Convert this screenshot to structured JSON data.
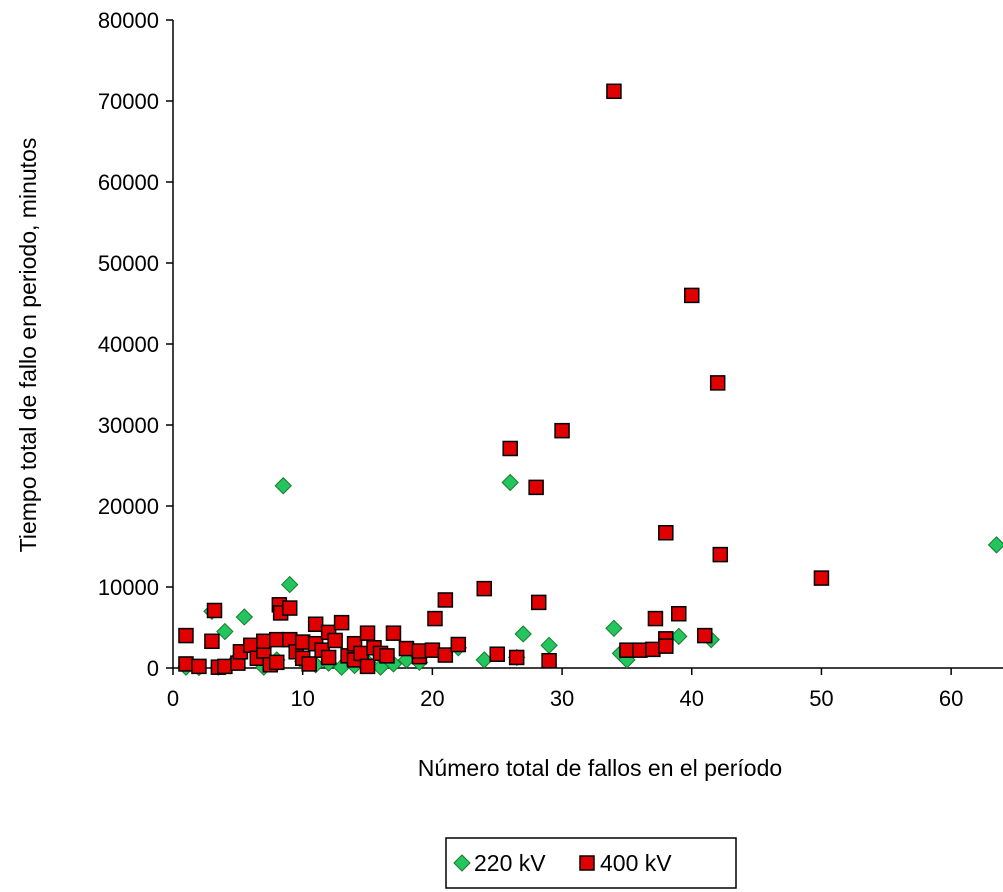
{
  "chart_data": {
    "type": "scatter",
    "title": "",
    "xlabel": "Número total de fallos en el período",
    "ylabel": "Tiempo total de fallo en periodo, minutos",
    "xlim": [
      0,
      64
    ],
    "ylim": [
      0,
      80000
    ],
    "x_ticks": [
      "0",
      "10",
      "20",
      "30",
      "40",
      "50",
      "60"
    ],
    "y_ticks": [
      "0",
      "10000",
      "20000",
      "30000",
      "40000",
      "50000",
      "60000",
      "70000",
      "80000"
    ],
    "grid": false,
    "legend_position": "bottom",
    "series": [
      {
        "name": "220 kV",
        "marker": "diamond",
        "color": "#22c55e",
        "points": [
          [
            1,
            100
          ],
          [
            2,
            50
          ],
          [
            3,
            7000
          ],
          [
            3.5,
            100
          ],
          [
            4,
            4500
          ],
          [
            5.5,
            6300
          ],
          [
            5,
            1200
          ],
          [
            7,
            100
          ],
          [
            8.5,
            22500
          ],
          [
            9,
            10300
          ],
          [
            8,
            1000
          ],
          [
            10,
            800
          ],
          [
            11,
            400
          ],
          [
            12,
            600
          ],
          [
            13,
            100
          ],
          [
            14,
            300
          ],
          [
            15,
            700
          ],
          [
            16,
            100
          ],
          [
            17,
            500
          ],
          [
            18,
            1000
          ],
          [
            19,
            700
          ],
          [
            22,
            2500
          ],
          [
            24,
            1000
          ],
          [
            26,
            22900
          ],
          [
            26.5,
            1300
          ],
          [
            27,
            4200
          ],
          [
            29,
            2800
          ],
          [
            34,
            4900
          ],
          [
            34.5,
            1800
          ],
          [
            35,
            1000
          ],
          [
            39,
            3900
          ],
          [
            41.5,
            3500
          ],
          [
            63.5,
            15200
          ]
        ]
      },
      {
        "name": "400 kV",
        "marker": "square",
        "color": "#e00000",
        "points": [
          [
            1,
            4000
          ],
          [
            1,
            500
          ],
          [
            2,
            200
          ],
          [
            3,
            3300
          ],
          [
            3.2,
            7100
          ],
          [
            3.5,
            100
          ],
          [
            4,
            200
          ],
          [
            5,
            600
          ],
          [
            5.2,
            2000
          ],
          [
            6,
            2800
          ],
          [
            6.5,
            1200
          ],
          [
            7,
            2100
          ],
          [
            7,
            3300
          ],
          [
            7.5,
            400
          ],
          [
            8,
            3500
          ],
          [
            8,
            700
          ],
          [
            8.2,
            7800
          ],
          [
            8.3,
            6800
          ],
          [
            9,
            7400
          ],
          [
            9,
            3500
          ],
          [
            9.5,
            2000
          ],
          [
            10,
            3200
          ],
          [
            10,
            1200
          ],
          [
            10.5,
            500
          ],
          [
            11,
            5400
          ],
          [
            11,
            3000
          ],
          [
            11.5,
            2200
          ],
          [
            12,
            4400
          ],
          [
            12,
            1300
          ],
          [
            12.5,
            3400
          ],
          [
            13,
            5600
          ],
          [
            13.5,
            1500
          ],
          [
            14,
            3000
          ],
          [
            14,
            1000
          ],
          [
            14.5,
            1800
          ],
          [
            15,
            4300
          ],
          [
            15,
            200
          ],
          [
            15.5,
            2500
          ],
          [
            16,
            1800
          ],
          [
            16.5,
            1500
          ],
          [
            17,
            4300
          ],
          [
            18,
            2400
          ],
          [
            19,
            1400
          ],
          [
            19,
            2100
          ],
          [
            20,
            2200
          ],
          [
            20.2,
            6100
          ],
          [
            21,
            8400
          ],
          [
            21,
            1600
          ],
          [
            22,
            2900
          ],
          [
            24,
            9800
          ],
          [
            25,
            1700
          ],
          [
            26,
            27100
          ],
          [
            26.5,
            1300
          ],
          [
            28,
            22300
          ],
          [
            28.2,
            8100
          ],
          [
            29,
            900
          ],
          [
            30,
            29300
          ],
          [
            34,
            71200
          ],
          [
            35,
            2200
          ],
          [
            36,
            2200
          ],
          [
            37,
            2300
          ],
          [
            37.2,
            6100
          ],
          [
            38,
            16700
          ],
          [
            38,
            3600
          ],
          [
            38,
            2700
          ],
          [
            39,
            6700
          ],
          [
            40,
            46000
          ],
          [
            41,
            4000
          ],
          [
            42,
            35200
          ],
          [
            42.2,
            14000
          ],
          [
            50,
            11100
          ]
        ]
      }
    ]
  }
}
